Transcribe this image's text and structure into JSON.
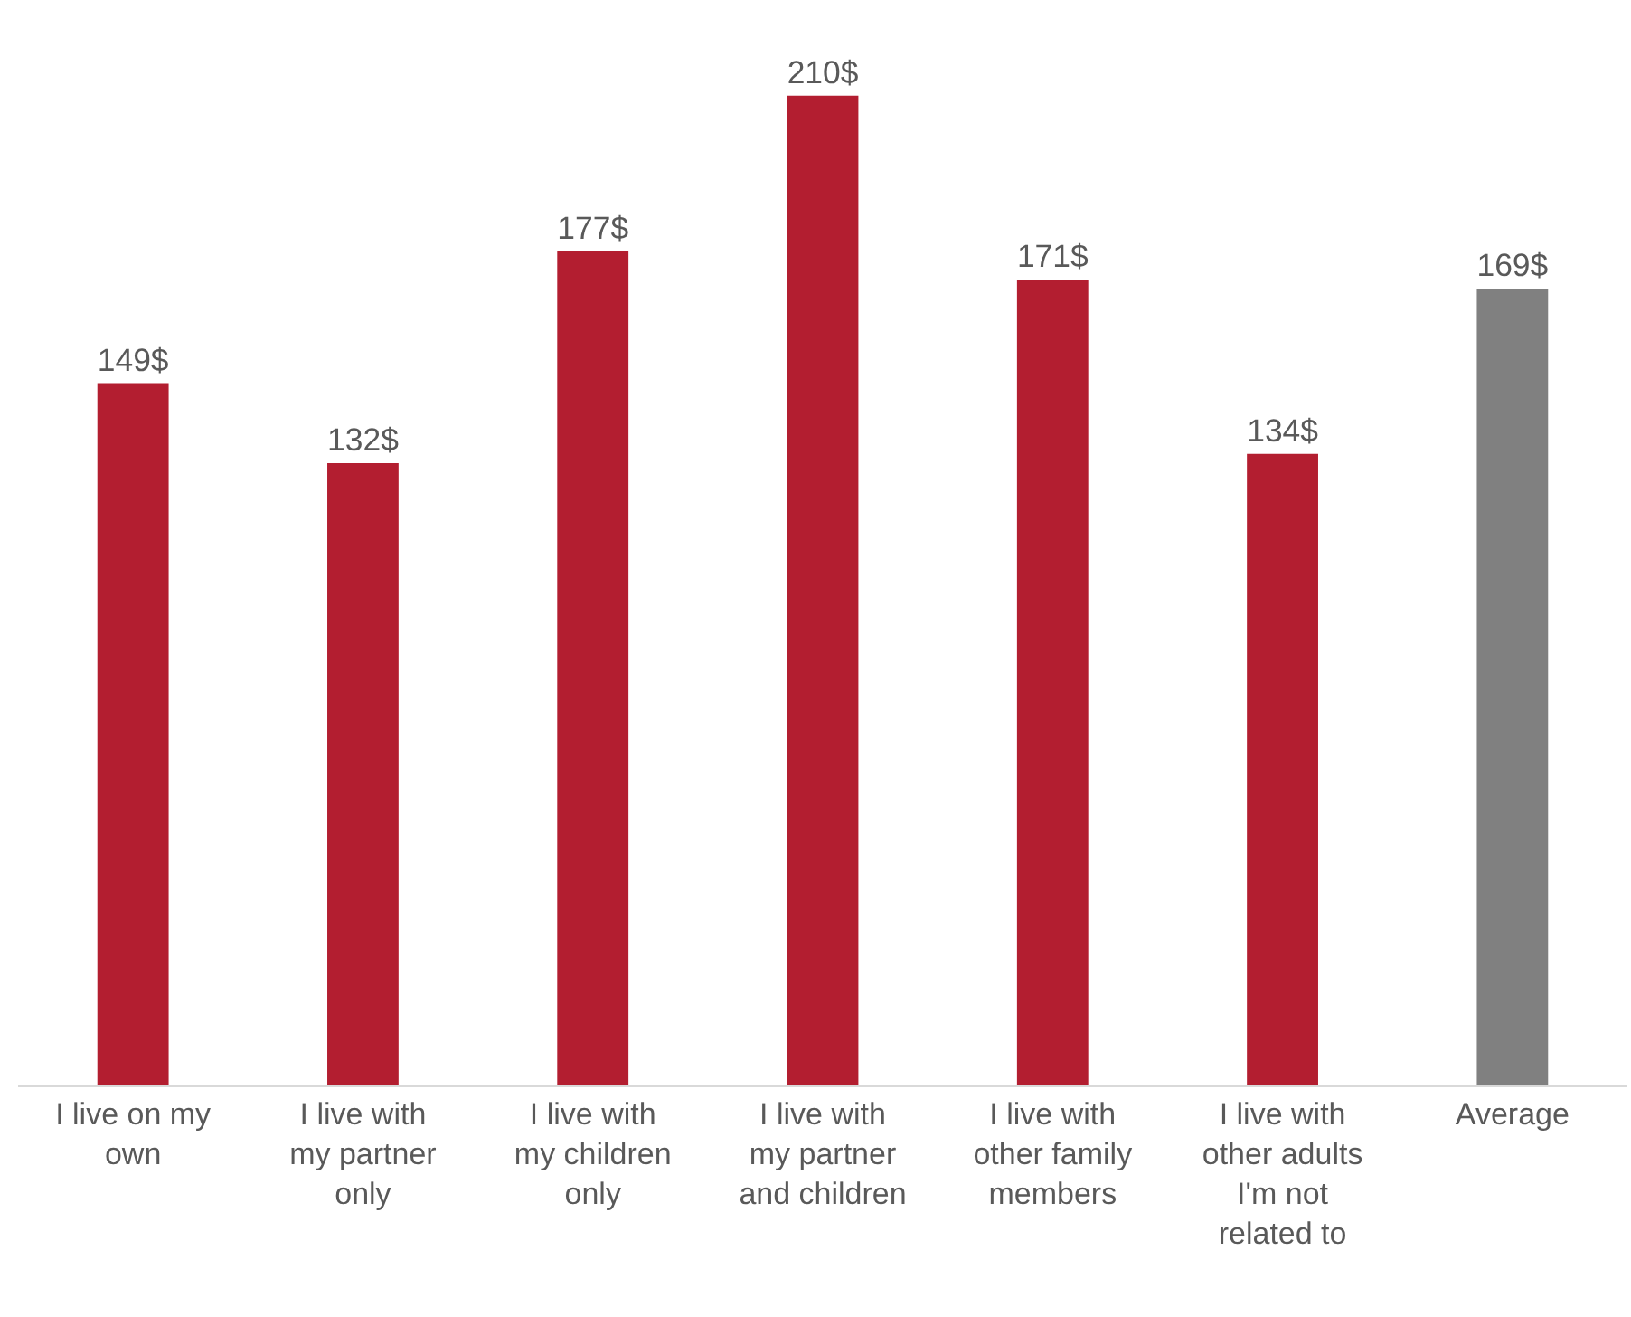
{
  "chart_data": {
    "type": "bar",
    "categories": [
      "I live on my own",
      "I live with my partner only",
      "I live with my children only",
      "I live with my partner and children",
      "I live with other family members",
      "I live with other adults I'm not related to",
      "Average"
    ],
    "values": [
      149,
      132,
      177,
      210,
      171,
      134,
      169
    ],
    "colors": [
      "#b31e30",
      "#b31e30",
      "#b31e30",
      "#b31e30",
      "#b31e30",
      "#b31e30",
      "#808080"
    ],
    "value_labels": [
      "149$",
      "132$",
      "177$",
      "210$",
      "171$",
      "134$",
      "169$"
    ]
  }
}
